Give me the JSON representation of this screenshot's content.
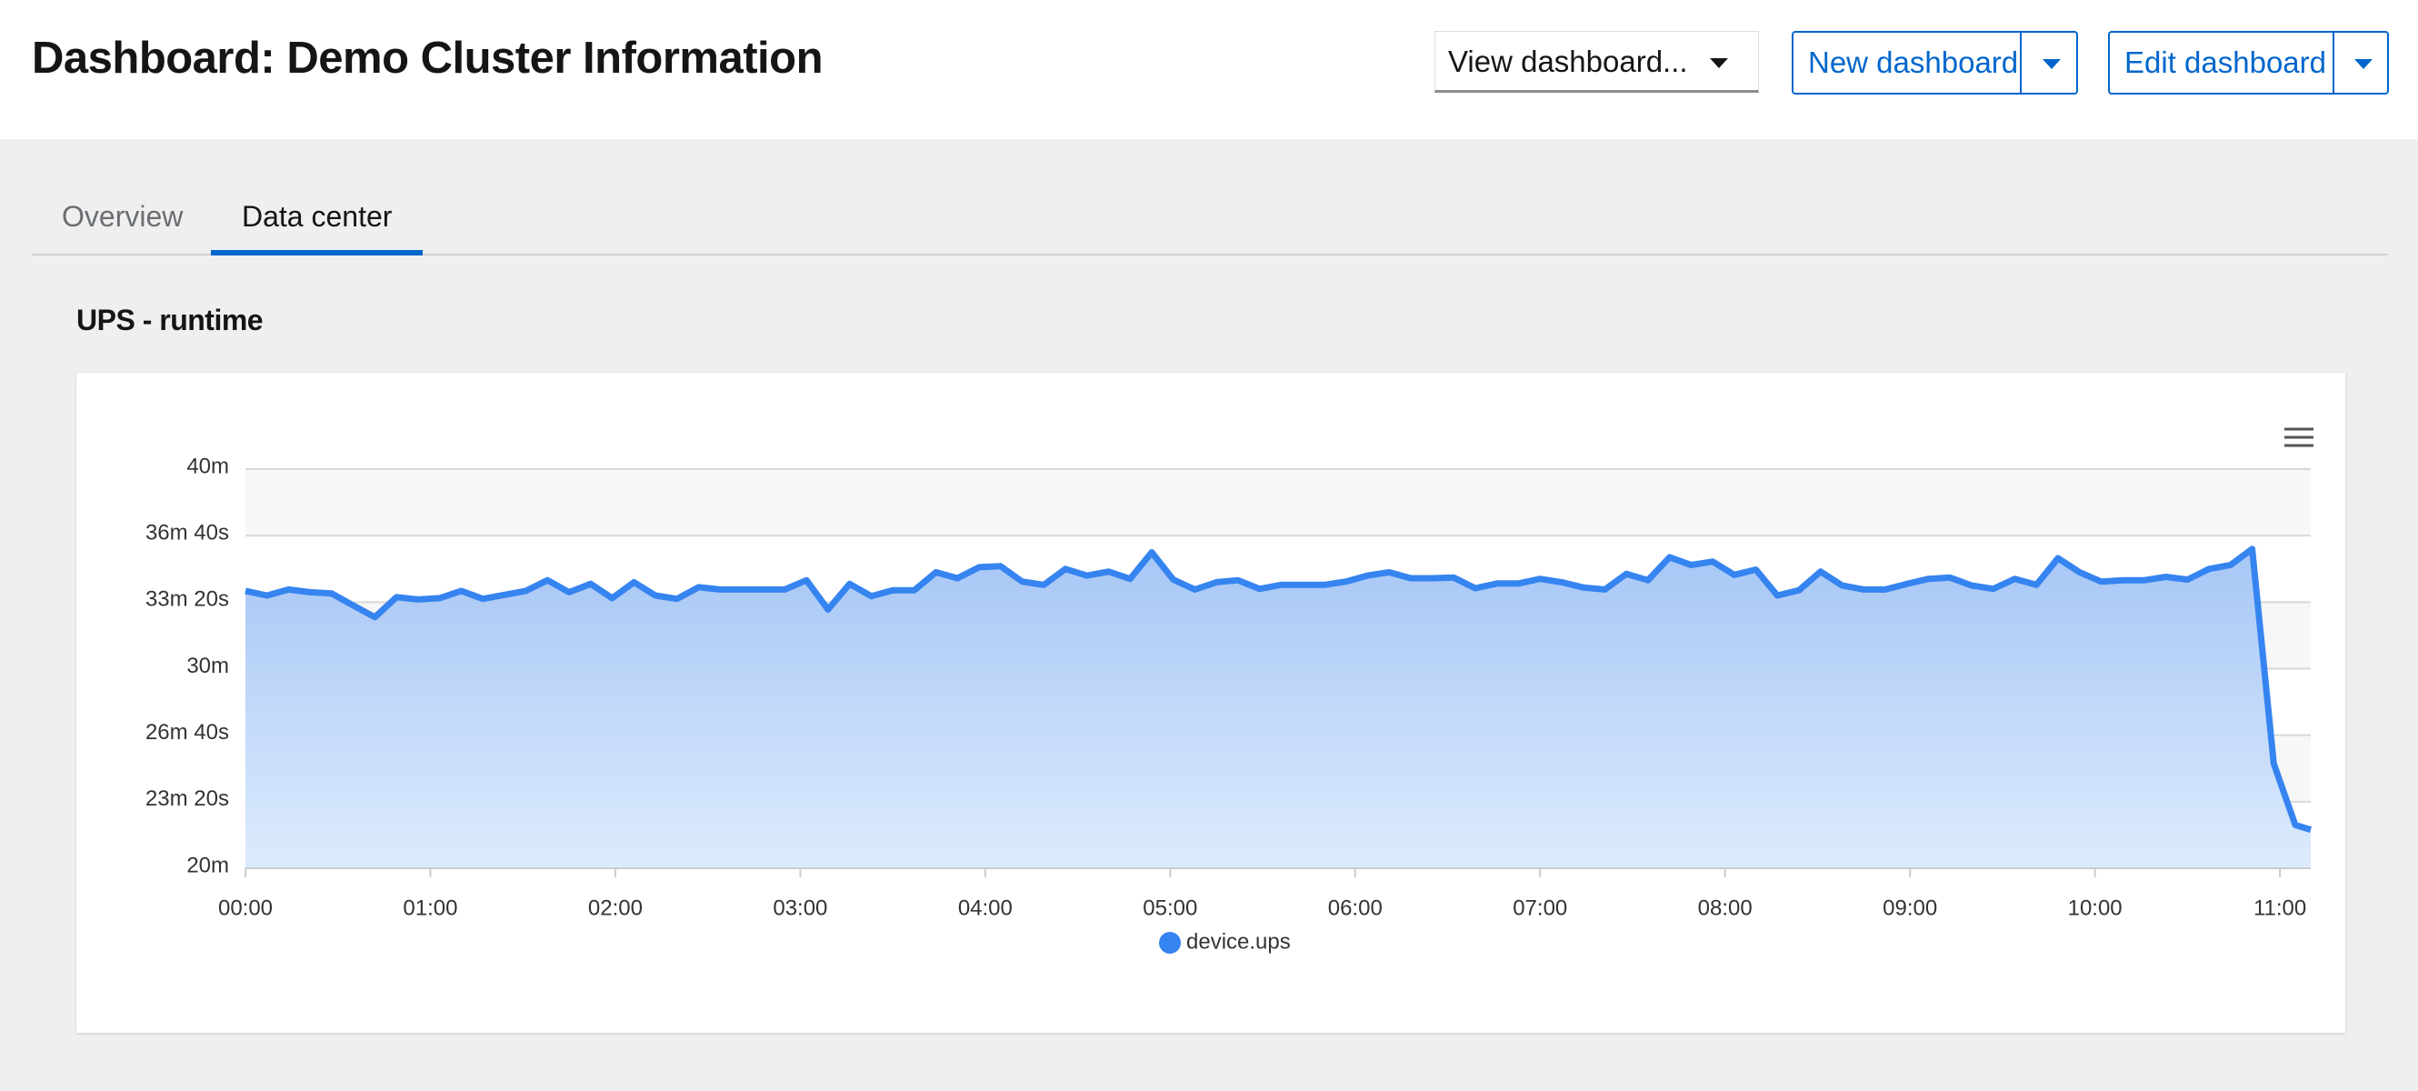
{
  "header": {
    "title": "Dashboard: Demo Cluster Information",
    "view_select": "View dashboard...",
    "new_button": "New dashboard",
    "edit_button": "Edit dashboard"
  },
  "tabs": [
    "Overview",
    "Data center"
  ],
  "active_tab": 1,
  "panel": {
    "title": "UPS - runtime"
  },
  "chart_data": {
    "type": "area",
    "x": [
      0,
      7,
      14,
      21,
      28,
      35,
      42,
      49,
      56,
      63,
      70,
      77,
      84,
      91,
      98,
      105,
      112,
      119,
      126,
      133,
      140,
      147,
      154,
      161,
      168,
      175,
      182,
      189,
      196,
      203,
      210,
      217,
      224,
      231,
      238,
      245,
      252,
      259,
      266,
      273,
      280,
      287,
      294,
      301,
      308,
      315,
      322,
      329,
      336,
      343,
      350,
      357,
      364,
      371,
      378,
      385,
      392,
      399,
      406,
      413,
      420,
      427,
      434,
      441,
      448,
      455,
      462,
      469,
      476,
      483,
      490,
      497,
      504,
      511,
      518,
      525,
      532,
      539,
      546,
      553,
      560,
      567,
      574,
      581,
      588,
      595,
      602,
      609,
      616,
      623,
      630,
      637,
      644,
      651,
      658,
      665,
      670
    ],
    "series": [
      {
        "name": "device.ups",
        "color": "#3584f0",
        "values": [
          2034,
          2020,
          2038,
          2030,
          2026,
          1990,
          1955,
          2015,
          2008,
          2012,
          2034,
          2010,
          2022,
          2034,
          2066,
          2030,
          2055,
          2012,
          2060,
          2020,
          2010,
          2045,
          2038,
          2038,
          2038,
          2038,
          2066,
          1978,
          2055,
          2018,
          2036,
          2036,
          2090,
          2072,
          2105,
          2108,
          2062,
          2052,
          2100,
          2080,
          2092,
          2070,
          2150,
          2068,
          2038,
          2060,
          2066,
          2040,
          2052,
          2052,
          2052,
          2062,
          2080,
          2090,
          2072,
          2072,
          2074,
          2042,
          2056,
          2056,
          2070,
          2060,
          2044,
          2038,
          2085,
          2066,
          2135,
          2112,
          2122,
          2082,
          2098,
          2020,
          2036,
          2092,
          2050,
          2038,
          2038,
          2055,
          2070,
          2074,
          2050,
          2040,
          2070,
          2052,
          2132,
          2090,
          2062,
          2066,
          2066,
          2076,
          2068,
          2100,
          2112,
          2160,
          1515,
          1330,
          1316
        ]
      }
    ],
    "xlim": [
      0,
      670
    ],
    "xticks": [
      {
        "value": 0,
        "label": "00:00"
      },
      {
        "value": 60,
        "label": "01:00"
      },
      {
        "value": 120,
        "label": "02:00"
      },
      {
        "value": 180,
        "label": "03:00"
      },
      {
        "value": 240,
        "label": "04:00"
      },
      {
        "value": 300,
        "label": "05:00"
      },
      {
        "value": 360,
        "label": "06:00"
      },
      {
        "value": 420,
        "label": "07:00"
      },
      {
        "value": 480,
        "label": "08:00"
      },
      {
        "value": 540,
        "label": "09:00"
      },
      {
        "value": 600,
        "label": "10:00"
      },
      {
        "value": 660,
        "label": "11:00"
      }
    ],
    "ylim": [
      1200,
      2400
    ],
    "yticks": [
      {
        "value": 1200,
        "label": "20m"
      },
      {
        "value": 1400,
        "label": "23m 20s"
      },
      {
        "value": 1600,
        "label": "26m 40s"
      },
      {
        "value": 1800,
        "label": "30m"
      },
      {
        "value": 2000,
        "label": "33m 20s"
      },
      {
        "value": 2200,
        "label": "36m 40s"
      },
      {
        "value": 2400,
        "label": "40m"
      }
    ],
    "grid": true
  }
}
